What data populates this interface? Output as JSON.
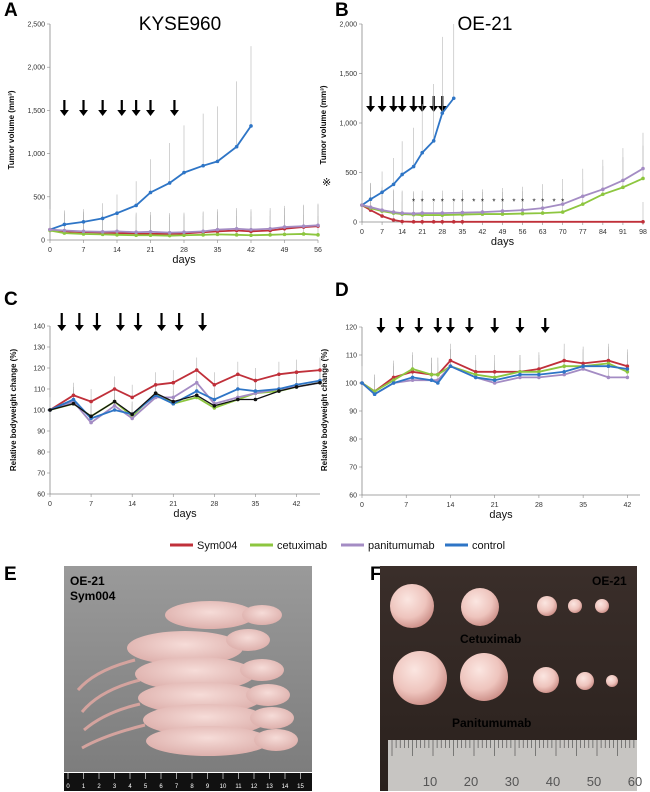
{
  "panels": {
    "A": "A",
    "B": "B",
    "C": "C",
    "D": "D",
    "E": "E",
    "F": "F"
  },
  "legend": [
    {
      "name": "Sym004",
      "color": "#c0303a"
    },
    {
      "name": "cetuximab",
      "color": "#8dc63f"
    },
    {
      "name": "panitumumab",
      "color": "#a48cc4"
    },
    {
      "name": "control",
      "color": "#2e75c6"
    }
  ],
  "photo_e": {
    "line1": "OE-21",
    "line2": "Sym004",
    "ruler_ticks": [
      "0",
      "1",
      "2",
      "3",
      "4",
      "5",
      "6",
      "7",
      "8",
      "9",
      "10",
      "11",
      "12",
      "13",
      "14",
      "15"
    ]
  },
  "photo_f": {
    "label_cell": "OE-21",
    "label_cetux": "Cetuximab",
    "label_panit": "Panitumumab",
    "ruler_ticks": [
      "10",
      "20",
      "30",
      "40",
      "50",
      "60"
    ]
  },
  "chart_data": [
    {
      "id": "A",
      "type": "line",
      "title": "KYSE960",
      "xlabel": "days",
      "ylabel": "Tumor volume (mm³)",
      "xlim": [
        0,
        56
      ],
      "ylim": [
        0,
        2500
      ],
      "xticks": [
        "0",
        "7",
        "14",
        "21",
        "28",
        "35",
        "42",
        "49",
        "56"
      ],
      "yticks": [
        "0",
        "500",
        "1,000",
        "1,500",
        "2,000",
        "2,500"
      ],
      "arrows_days": [
        3,
        7,
        11,
        15,
        18,
        21,
        26
      ],
      "series": [
        {
          "name": "control",
          "x": [
            0,
            3,
            7,
            11,
            14,
            18,
            21,
            25,
            28,
            32,
            35,
            39,
            42,
            46
          ],
          "values": [
            120,
            180,
            210,
            250,
            310,
            400,
            550,
            660,
            780,
            860,
            910,
            1080,
            1320,
            null
          ]
        },
        {
          "name": "Sym004",
          "x": [
            0,
            3,
            7,
            11,
            14,
            18,
            21,
            25,
            28,
            32,
            35,
            39,
            42,
            46,
            49,
            53,
            56
          ],
          "values": [
            120,
            100,
            90,
            85,
            80,
            75,
            70,
            70,
            75,
            90,
            100,
            110,
            100,
            110,
            130,
            150,
            160
          ]
        },
        {
          "name": "cetuximab",
          "x": [
            0,
            3,
            7,
            11,
            14,
            18,
            21,
            25,
            28,
            32,
            35,
            39,
            42,
            46,
            49,
            53,
            56
          ],
          "values": [
            110,
            80,
            70,
            65,
            60,
            55,
            55,
            50,
            55,
            60,
            65,
            60,
            55,
            60,
            65,
            70,
            60
          ]
        },
        {
          "name": "panitumumab",
          "x": [
            0,
            3,
            7,
            11,
            14,
            18,
            21,
            25,
            28,
            32,
            35,
            39,
            42,
            46,
            49,
            53,
            56
          ],
          "values": [
            120,
            110,
            100,
            95,
            100,
            90,
            95,
            85,
            90,
            100,
            120,
            130,
            120,
            130,
            150,
            160,
            170
          ]
        }
      ],
      "error_tops": [
        300,
        420,
        450,
        520,
        640,
        880,
        1070,
        1350,
        1380,
        1400,
        1800,
        2150
      ]
    },
    {
      "id": "B",
      "type": "line",
      "title": "OE-21",
      "xlabel": "days",
      "ylabel": "Tumor volume (mm³)",
      "side_mark": "※",
      "xlim": [
        0,
        98
      ],
      "ylim": [
        0,
        2000
      ],
      "xticks": [
        "0",
        "7",
        "14",
        "21",
        "28",
        "35",
        "42",
        "49",
        "56",
        "63",
        "70",
        "77",
        "84",
        "91",
        "98"
      ],
      "yticks": [
        "0",
        "500",
        "1,000",
        "1,500",
        "2,000"
      ],
      "arrows_days": [
        3,
        7,
        11,
        14,
        18,
        21,
        25,
        28
      ],
      "significance_days": [
        18,
        21,
        25,
        28,
        32,
        35,
        39,
        42,
        46,
        49,
        53,
        56,
        60,
        63,
        67,
        70
      ],
      "series": [
        {
          "name": "control",
          "x": [
            0,
            3,
            7,
            11,
            14,
            18,
            21,
            25,
            28,
            32,
            35
          ],
          "values": [
            170,
            230,
            300,
            380,
            480,
            560,
            700,
            820,
            1100,
            1250,
            null
          ]
        },
        {
          "name": "Sym004",
          "x": [
            0,
            3,
            7,
            11,
            14,
            18,
            21,
            25,
            28,
            32,
            35,
            98
          ],
          "values": [
            170,
            120,
            60,
            20,
            5,
            2,
            2,
            2,
            2,
            2,
            2,
            2
          ]
        },
        {
          "name": "cetuximab",
          "x": [
            0,
            3,
            7,
            11,
            14,
            18,
            21,
            28,
            35,
            42,
            49,
            56,
            63,
            70,
            77,
            84,
            91,
            98
          ],
          "values": [
            170,
            140,
            110,
            90,
            80,
            75,
            70,
            70,
            75,
            80,
            80,
            85,
            90,
            100,
            180,
            280,
            350,
            440
          ]
        },
        {
          "name": "panitumumab",
          "x": [
            0,
            3,
            7,
            11,
            14,
            18,
            21,
            28,
            35,
            42,
            49,
            56,
            63,
            70,
            77,
            84,
            91,
            98
          ],
          "values": [
            170,
            150,
            120,
            100,
            90,
            85,
            90,
            90,
            95,
            100,
            110,
            120,
            140,
            180,
            260,
            330,
            420,
            540
          ]
        }
      ]
    },
    {
      "id": "C",
      "type": "line",
      "xlabel": "days",
      "ylabel": "Relative bodyweight change (%)",
      "xlim": [
        0,
        46
      ],
      "ylim": [
        60,
        140
      ],
      "xticks": [
        "0",
        "7",
        "14",
        "21",
        "28",
        "35",
        "42"
      ],
      "yticks": [
        "60",
        "70",
        "80",
        "90",
        "100",
        "110",
        "120",
        "130",
        "140"
      ],
      "arrows_days": [
        2,
        5,
        8,
        12,
        15,
        19,
        22,
        26
      ],
      "series": [
        {
          "name": "Sym004",
          "x": [
            0,
            4,
            7,
            11,
            14,
            18,
            21,
            25,
            28,
            32,
            35,
            39,
            42,
            46
          ],
          "values": [
            100,
            107,
            104,
            110,
            106,
            112,
            113,
            119,
            112,
            117,
            114,
            117,
            118,
            119
          ]
        },
        {
          "name": "cetuximab",
          "x": [
            0,
            4,
            7,
            11,
            14,
            18,
            21,
            25,
            28,
            32,
            35,
            39,
            42,
            46
          ],
          "values": [
            100,
            103,
            97,
            104,
            97,
            108,
            103,
            106,
            101,
            105,
            108,
            109,
            111,
            113
          ]
        },
        {
          "name": "panitumumab",
          "x": [
            0,
            4,
            7,
            11,
            14,
            18,
            21,
            25,
            28,
            32,
            35,
            39,
            42,
            46
          ],
          "values": [
            100,
            104,
            94,
            102,
            96,
            106,
            106,
            113,
            103,
            106,
            108,
            110,
            111,
            113
          ]
        },
        {
          "name": "control",
          "x": [
            0,
            4,
            7,
            11,
            14,
            18,
            21,
            25,
            28,
            32,
            35,
            39,
            42,
            46
          ],
          "values": [
            100,
            105,
            96,
            100,
            98,
            107,
            103,
            109,
            105,
            110,
            109,
            110,
            112,
            114
          ]
        },
        {
          "name": "black",
          "x": [
            0,
            4,
            7,
            11,
            14,
            18,
            21,
            25,
            28,
            32,
            35,
            39,
            42,
            46
          ],
          "values": [
            100,
            103,
            97,
            104,
            98,
            108,
            104,
            107,
            102,
            105,
            105,
            109,
            111,
            113
          ]
        }
      ]
    },
    {
      "id": "D",
      "type": "line",
      "xlabel": "days",
      "ylabel": "Relative bodyweight change (%)",
      "xlim": [
        0,
        44
      ],
      "ylim": [
        60,
        120
      ],
      "xticks": [
        "0",
        "7",
        "14",
        "21",
        "28",
        "35",
        "42"
      ],
      "yticks": [
        "60",
        "70",
        "80",
        "90",
        "100",
        "110",
        "120"
      ],
      "arrows_days": [
        3,
        6,
        9,
        12,
        14,
        17,
        21,
        25,
        29
      ],
      "series": [
        {
          "name": "Sym004",
          "x": [
            0,
            2,
            5,
            8,
            11,
            12,
            14,
            18,
            21,
            25,
            28,
            32,
            35,
            39,
            42
          ],
          "values": [
            100,
            97,
            102,
            104,
            103,
            103,
            108,
            104,
            104,
            104,
            105,
            108,
            107,
            108,
            106
          ]
        },
        {
          "name": "cetuximab",
          "x": [
            0,
            2,
            5,
            8,
            11,
            12,
            14,
            18,
            21,
            25,
            28,
            32,
            35,
            39,
            42
          ],
          "values": [
            100,
            97,
            101,
            105,
            103,
            103,
            106,
            103,
            102,
            104,
            104,
            106,
            106,
            107,
            104
          ]
        },
        {
          "name": "panitumumab",
          "x": [
            0,
            2,
            5,
            8,
            11,
            12,
            14,
            18,
            21,
            25,
            28,
            32,
            35,
            39,
            42
          ],
          "values": [
            100,
            96,
            100,
            101,
            101,
            101,
            106,
            102,
            100,
            102,
            102,
            103,
            105,
            102,
            102
          ]
        },
        {
          "name": "control",
          "x": [
            0,
            2,
            5,
            8,
            11,
            12,
            14,
            18,
            21,
            25,
            28,
            32,
            35,
            39,
            42
          ],
          "values": [
            100,
            96,
            100,
            102,
            101,
            100,
            106,
            102,
            101,
            103,
            103,
            104,
            106,
            106,
            105
          ]
        }
      ]
    }
  ]
}
